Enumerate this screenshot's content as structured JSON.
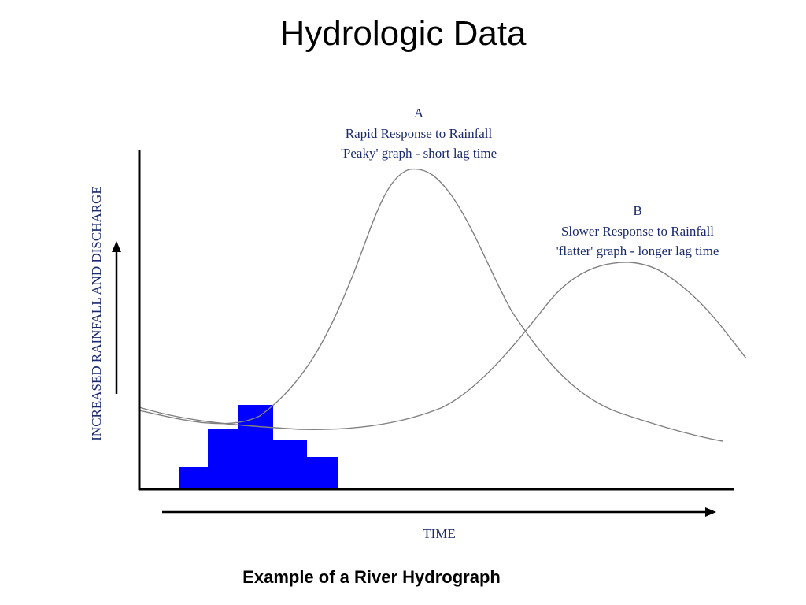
{
  "slide": {
    "title": "Hydrologic Data",
    "caption": "Example of a River Hydrograph"
  },
  "diagram": {
    "y_axis_label": "INCREASED RAINFALL AND DISCHARGE",
    "x_axis_label": "TIME",
    "curve_a": {
      "letter": "A",
      "line1": "Rapid Response to Rainfall",
      "line2": "'Peaky' graph - short lag time"
    },
    "curve_b": {
      "letter": "B",
      "line1": "Slower Response to Rainfall",
      "line2": "'flatter' graph - longer lag time"
    }
  },
  "colors": {
    "rainfall_bars": "#0000ff",
    "annotation_text": "#1a2a6c",
    "curve_stroke": "#808080",
    "axis": "#000000"
  }
}
